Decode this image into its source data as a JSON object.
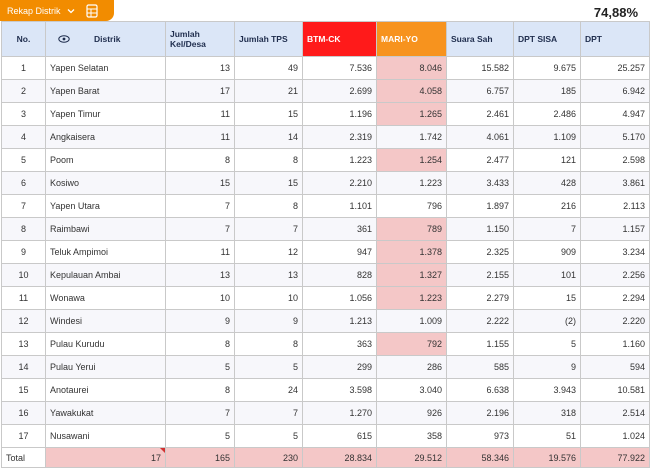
{
  "toolbar": {
    "tab_label": "Rekap Distrik",
    "tab_icon": "chevron-down-icon",
    "sheet_icon": "spreadsheet-icon",
    "percent": "74,88%"
  },
  "colors": {
    "accent_orange": "#f28c00",
    "btm_header": "#ff1a1a",
    "mari_header": "#f7931e",
    "highlight": "#f4c7c7",
    "header_bg": "#dbe6f7"
  },
  "headers": {
    "no": "No.",
    "distrik": "Distrik",
    "kel": "Jumlah Kel/Desa",
    "tps": "Jumlah TPS",
    "btm": "BTM-CK",
    "mari": "MARI-YO",
    "sah": "Suara Sah",
    "sisa": "DPT SISA",
    "dpt": "DPT"
  },
  "rows": [
    {
      "no": "1",
      "distrik": "Yapen Selatan",
      "kel": "13",
      "tps": "49",
      "btm": "7.536",
      "mari": "8.046",
      "sah": "15.582",
      "sisa": "9.675",
      "dpt": "25.257"
    },
    {
      "no": "2",
      "distrik": "Yapen Barat",
      "kel": "17",
      "tps": "21",
      "btm": "2.699",
      "mari": "4.058",
      "sah": "6.757",
      "sisa": "185",
      "dpt": "6.942"
    },
    {
      "no": "3",
      "distrik": "Yapen Timur",
      "kel": "11",
      "tps": "15",
      "btm": "1.196",
      "mari": "1.265",
      "sah": "2.461",
      "sisa": "2.486",
      "dpt": "4.947"
    },
    {
      "no": "4",
      "distrik": "Angkaisera",
      "kel": "11",
      "tps": "14",
      "btm": "2.319",
      "mari": "1.742",
      "sah": "4.061",
      "sisa": "1.109",
      "dpt": "5.170"
    },
    {
      "no": "5",
      "distrik": "Poom",
      "kel": "8",
      "tps": "8",
      "btm": "1.223",
      "mari": "1.254",
      "sah": "2.477",
      "sisa": "121",
      "dpt": "2.598"
    },
    {
      "no": "6",
      "distrik": "Kosiwo",
      "kel": "15",
      "tps": "15",
      "btm": "2.210",
      "mari": "1.223",
      "sah": "3.433",
      "sisa": "428",
      "dpt": "3.861"
    },
    {
      "no": "7",
      "distrik": "Yapen Utara",
      "kel": "7",
      "tps": "8",
      "btm": "1.101",
      "mari": "796",
      "sah": "1.897",
      "sisa": "216",
      "dpt": "2.113"
    },
    {
      "no": "8",
      "distrik": "Raimbawi",
      "kel": "7",
      "tps": "7",
      "btm": "361",
      "mari": "789",
      "sah": "1.150",
      "sisa": "7",
      "dpt": "1.157"
    },
    {
      "no": "9",
      "distrik": "Teluk Ampimoi",
      "kel": "11",
      "tps": "12",
      "btm": "947",
      "mari": "1.378",
      "sah": "2.325",
      "sisa": "909",
      "dpt": "3.234"
    },
    {
      "no": "10",
      "distrik": "Kepulauan Ambai",
      "kel": "13",
      "tps": "13",
      "btm": "828",
      "mari": "1.327",
      "sah": "2.155",
      "sisa": "101",
      "dpt": "2.256"
    },
    {
      "no": "11",
      "distrik": "Wonawa",
      "kel": "10",
      "tps": "10",
      "btm": "1.056",
      "mari": "1.223",
      "sah": "2.279",
      "sisa": "15",
      "dpt": "2.294"
    },
    {
      "no": "12",
      "distrik": "Windesi",
      "kel": "9",
      "tps": "9",
      "btm": "1.213",
      "mari": "1.009",
      "sah": "2.222",
      "sisa": "(2)",
      "dpt": "2.220"
    },
    {
      "no": "13",
      "distrik": "Pulau Kurudu",
      "kel": "8",
      "tps": "8",
      "btm": "363",
      "mari": "792",
      "sah": "1.155",
      "sisa": "5",
      "dpt": "1.160"
    },
    {
      "no": "14",
      "distrik": "Pulau Yerui",
      "kel": "5",
      "tps": "5",
      "btm": "299",
      "mari": "286",
      "sah": "585",
      "sisa": "9",
      "dpt": "594"
    },
    {
      "no": "15",
      "distrik": "Anotaurei",
      "kel": "8",
      "tps": "24",
      "btm": "3.598",
      "mari": "3.040",
      "sah": "6.638",
      "sisa": "3.943",
      "dpt": "10.581"
    },
    {
      "no": "16",
      "distrik": "Yawakukat",
      "kel": "7",
      "tps": "7",
      "btm": "1.270",
      "mari": "926",
      "sah": "2.196",
      "sisa": "318",
      "dpt": "2.514"
    },
    {
      "no": "17",
      "distrik": "Nusawani",
      "kel": "5",
      "tps": "5",
      "btm": "615",
      "mari": "358",
      "sah": "973",
      "sisa": "51",
      "dpt": "1.024"
    }
  ],
  "highlight_mari_rows": [
    1,
    2,
    3,
    5,
    8,
    9,
    10,
    11,
    13
  ],
  "total": {
    "label": "Total",
    "distrik": "17",
    "kel": "165",
    "tps": "230",
    "btm": "28.834",
    "mari": "29.512",
    "sah": "58.346",
    "sisa": "19.576",
    "dpt": "77.922"
  }
}
